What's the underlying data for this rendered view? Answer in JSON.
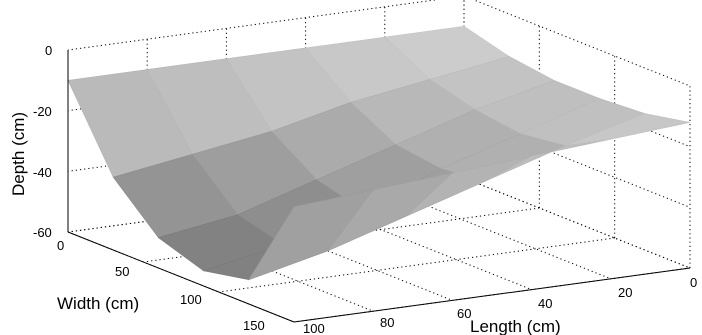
{
  "chart_data": {
    "type": "surface3d",
    "title": "",
    "xlabel": "Length (cm)",
    "ylabel": "Width (cm)",
    "zlabel": "Depth (cm)",
    "xlim": [
      0,
      100
    ],
    "ylim": [
      0,
      150
    ],
    "zlim": [
      -60,
      0
    ],
    "x_ticks": [
      "0",
      "20",
      "40",
      "60",
      "80",
      "100"
    ],
    "y_ticks": [
      "0",
      "50",
      "100",
      "150"
    ],
    "z_ticks": [
      "0",
      "-20",
      "-40",
      "-60"
    ],
    "grid": true,
    "colormap": "gray",
    "surfaces": [
      {
        "name": "",
        "description_depth_max": -55,
        "x": [
          0,
          20,
          40,
          60,
          80,
          100
        ],
        "y": [
          0,
          30,
          60,
          90,
          120,
          150
        ],
        "z": [
          [
            -10,
            -10,
            -10,
            -10,
            -10,
            -10
          ],
          [
            -14,
            -18,
            -22,
            -28,
            -32,
            -36
          ],
          [
            -16,
            -22,
            -30,
            -38,
            -46,
            -50
          ],
          [
            -16,
            -24,
            -32,
            -42,
            -50,
            -55
          ],
          [
            -15,
            -22,
            -30,
            -38,
            -46,
            -52
          ],
          [
            -12,
            -14,
            -16,
            -18,
            -20,
            -22
          ]
        ]
      }
    ]
  }
}
